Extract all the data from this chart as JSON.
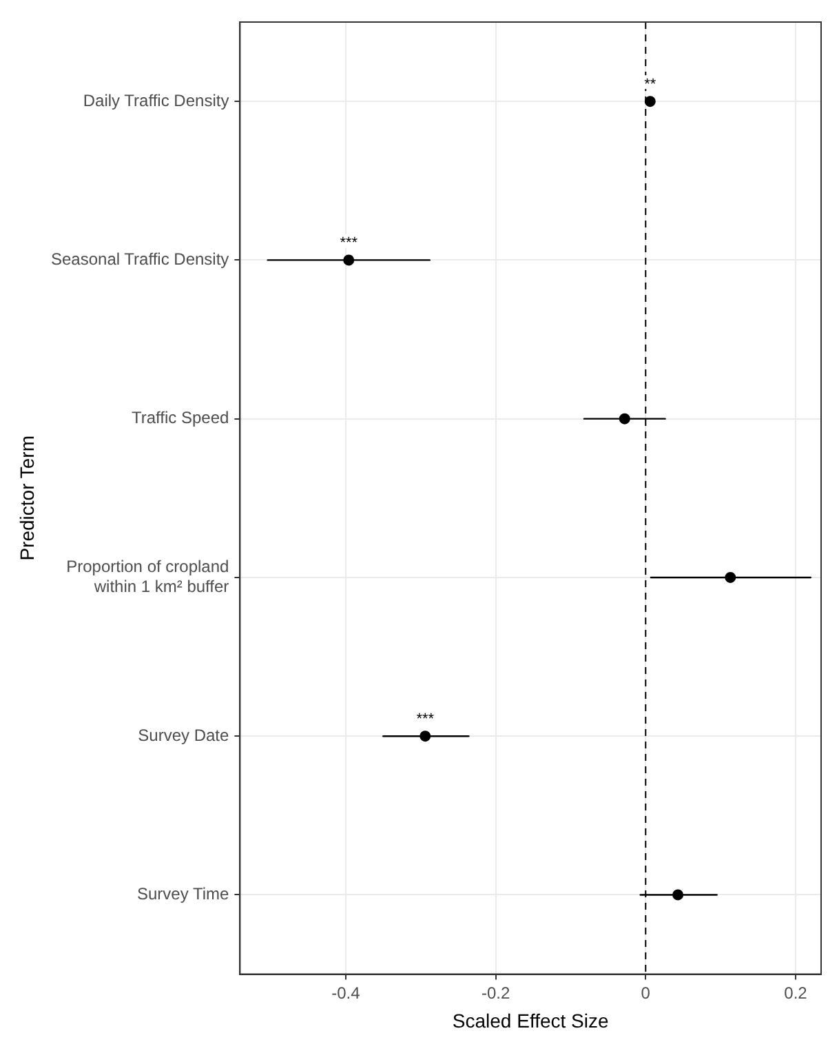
{
  "chart_data": {
    "type": "scatter",
    "orientation": "horizontal",
    "xlabel": "Scaled Effect Size",
    "ylabel": "Predictor Term",
    "categories": [
      "Daily Traffic Density",
      "Seasonal Traffic Density",
      "Traffic Speed",
      "Proportion of cropland within 1 km² buffer",
      "Survey Date",
      "Survey Time"
    ],
    "values": [
      0.006,
      -0.396,
      -0.028,
      0.113,
      -0.294,
      0.043
    ],
    "errors": [
      null,
      [
        -0.504,
        -0.288
      ],
      [
        -0.082,
        0.026
      ],
      [
        0.007,
        0.22
      ],
      [
        -0.35,
        -0.236
      ],
      [
        -0.007,
        0.095
      ]
    ],
    "color": "#000000",
    "marker": "circle",
    "xlim": [
      -0.541,
      0.234
    ],
    "xticks": [
      -0.4,
      -0.2,
      0,
      0.2
    ],
    "grid": true,
    "legend": false,
    "ref_lines": [
      {
        "axis": "x",
        "value": 0,
        "line_style": "dashed",
        "color": "#000000"
      }
    ],
    "annotations": [
      {
        "text": "**",
        "x": 0.006,
        "y": "Daily Traffic Density"
      },
      {
        "text": "***",
        "x": -0.396,
        "y": "Seasonal Traffic Density"
      },
      {
        "text": "***",
        "x": -0.294,
        "y": "Survey Date"
      }
    ]
  }
}
